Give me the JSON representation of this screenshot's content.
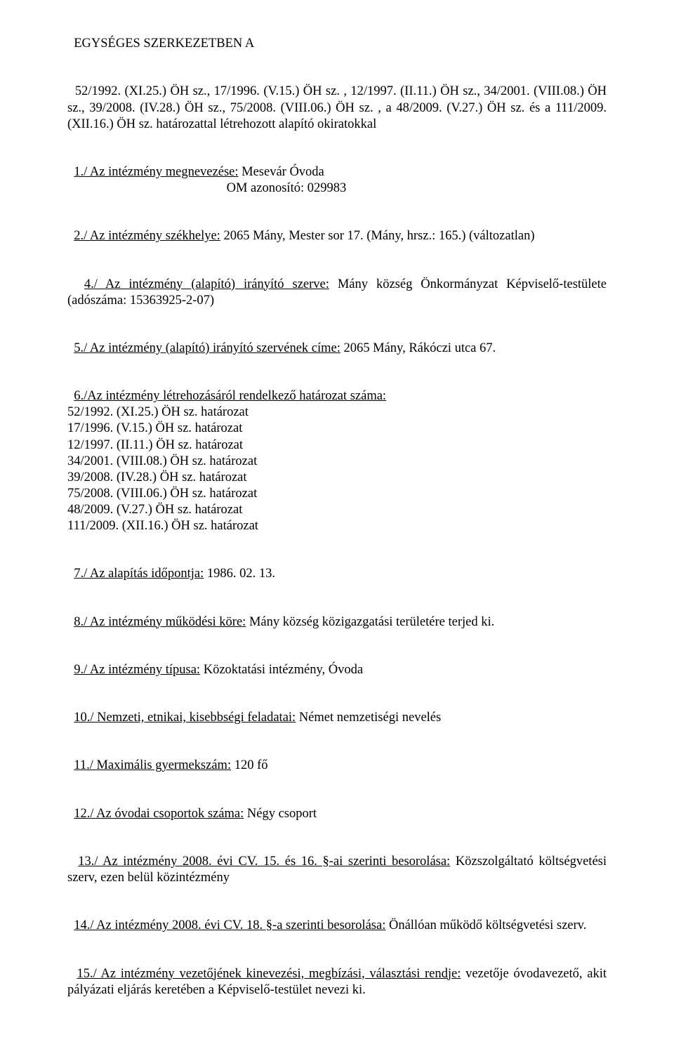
{
  "p0": {
    "text": "EGYSÉGES SZERKEZETBEN A"
  },
  "p1": {
    "text": "52/1992. (XI.25.) ÖH sz., 17/1996. (V.15.) ÖH sz. , 12/1997. (II.11.) ÖH sz., 34/2001. (VIII.08.) ÖH sz., 39/2008. (IV.28.) ÖH sz., 75/2008. (VIII.06.) ÖH sz. , a 48/2009. (V.27.) ÖH sz. és a 111/2009. (XII.16.) ÖH sz. határozattal létrehozott alapító okiratokkal"
  },
  "s2": {
    "u": "1./ Az intézmény megnevezése:",
    "rest": " Mesevár Óvoda",
    "line2": "                                                 OM azonosító: 029983"
  },
  "s3": {
    "u": "2./ Az intézmény székhelye:",
    "rest": " 2065 Mány, Mester sor 17. (Mány, hrsz.: 165.) (változatlan)"
  },
  "s4": {
    "u": "4./ Az intézmény (alapító) irányító szerve:",
    "rest": " Mány község Önkormányzat Képviselő-testülete (adószáma: 15363925-2-07)"
  },
  "s5": {
    "u": "5./ Az intézmény (alapító) irányító szervének címe:",
    "rest": " 2065 Mány, Rákóczi utca 67."
  },
  "s6": {
    "u": "6./Az intézmény létrehozásáról rendelkező határozat száma:",
    "lines": "52/1992. (XI.25.) ÖH sz. határozat\n17/1996. (V.15.) ÖH sz. határozat\n12/1997. (II.11.) ÖH sz. határozat\n34/2001. (VIII.08.) ÖH sz. határozat\n39/2008. (IV.28.) ÖH sz. határozat\n75/2008. (VIII.06.) ÖH sz. határozat\n48/2009. (V.27.) ÖH sz. határozat\n111/2009. (XII.16.) ÖH sz. határozat"
  },
  "s7": {
    "u": "7./ Az alapítás időpontja:",
    "rest": " 1986. 02. 13."
  },
  "s8": {
    "u": "8./ Az intézmény működési köre:",
    "rest": " Mány község közigazgatási területére terjed ki."
  },
  "s9": {
    "u": "9./ Az intézmény típusa:",
    "rest": " Közoktatási intézmény, Óvoda"
  },
  "s10": {
    "u": "10./ Nemzeti, etnikai, kisebbségi feladatai:",
    "rest": " Német nemzetiségi nevelés"
  },
  "s11": {
    "u": "11./ Maximális gyermekszám:",
    "rest": " 120 fő"
  },
  "s12": {
    "u": "12./ Az óvodai csoportok száma:",
    "rest": " Négy csoport"
  },
  "s13": {
    "u": "13./ Az intézmény 2008. évi CV. 15. és 16. §-ai szerinti besorolása:",
    "rest": " Közszolgáltató költségvetési szerv, ezen belül közintézmény"
  },
  "s14": {
    "u": "14./ Az intézmény 2008. évi CV. 18. §-a szerinti besorolása:",
    "rest": " Önállóan működő költségvetési szerv."
  },
  "s15": {
    "u": "15./ Az intézmény vezetőjének kinevezési, megbízási, választási rendje:",
    "rest": " vezetője óvodavezető, akit pályázati eljárás keretében a Képviselő-testület nevezi ki."
  }
}
